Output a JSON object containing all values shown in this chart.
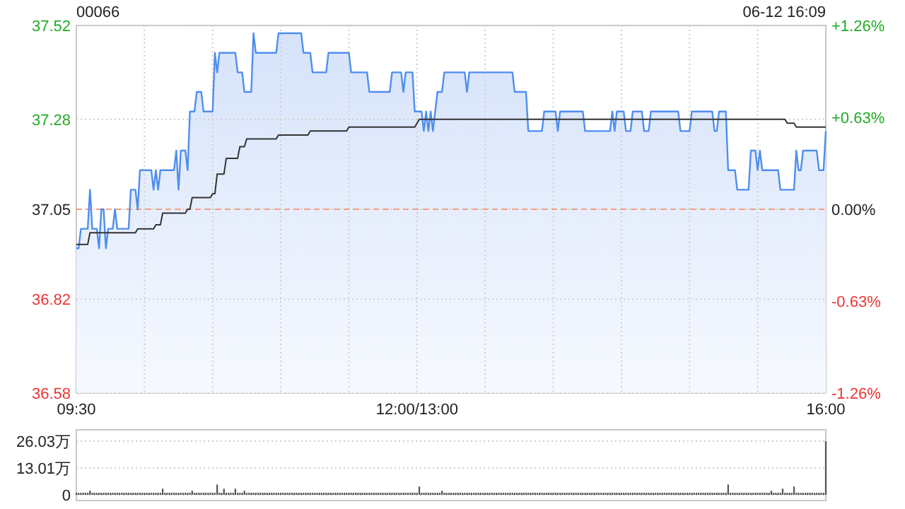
{
  "chart_data": [
    {
      "type": "area",
      "title": "00066",
      "subtitle": "06-12 16:09",
      "categories": [
        "09:30",
        null,
        null,
        null,
        null,
        null,
        null,
        null,
        null,
        null,
        null,
        null,
        null,
        null,
        null,
        null,
        null,
        null,
        null,
        null,
        null,
        null,
        null,
        null,
        null,
        null,
        null,
        null,
        null,
        null,
        null,
        null,
        null,
        null,
        null,
        null,
        null,
        null,
        null,
        null,
        null,
        null,
        null,
        null,
        null,
        null,
        null,
        null,
        null,
        null,
        null,
        null,
        null,
        null,
        null,
        null,
        null,
        null,
        null,
        null,
        null,
        null,
        null,
        null,
        null,
        null,
        null,
        null,
        null,
        null,
        null,
        null,
        null,
        null,
        null,
        null,
        null,
        null,
        null,
        null,
        null,
        null,
        null,
        null,
        null,
        null,
        null,
        null,
        null,
        null,
        null,
        null,
        null,
        null,
        null,
        null,
        null,
        null,
        null,
        null,
        null,
        null,
        null,
        null,
        null,
        null,
        null,
        null,
        null,
        null,
        null,
        null,
        null,
        null,
        null,
        null,
        null,
        null,
        null,
        null,
        null,
        null,
        null,
        null,
        null,
        null,
        null,
        null,
        null,
        null,
        null,
        null,
        null,
        null,
        null,
        null,
        null,
        null,
        null,
        null,
        null,
        null,
        null,
        null,
        null,
        null,
        null,
        null,
        null,
        null,
        "12:00/13:00",
        null,
        null,
        null,
        null,
        null,
        null,
        null,
        null,
        null,
        null,
        null,
        null,
        null,
        null,
        null,
        null,
        null,
        null,
        null,
        null,
        null,
        null,
        null,
        null,
        null,
        null,
        null,
        null,
        null,
        null,
        null,
        null,
        null,
        null,
        null,
        null,
        null,
        null,
        null,
        null,
        null,
        null,
        null,
        null,
        null,
        null,
        null,
        null,
        null,
        null,
        null,
        null,
        null,
        null,
        null,
        null,
        null,
        null,
        null,
        null,
        null,
        null,
        null,
        null,
        null,
        null,
        null,
        null,
        null,
        null,
        null,
        null,
        null,
        null,
        null,
        null,
        null,
        null,
        null,
        null,
        null,
        null,
        null,
        null,
        null,
        null,
        null,
        null,
        null,
        null,
        null,
        null,
        null,
        null,
        null,
        null,
        null,
        null,
        null,
        null,
        null,
        null,
        null,
        null,
        null,
        null,
        null,
        null,
        null,
        null,
        null,
        null,
        null,
        null,
        null,
        null,
        null,
        null,
        null,
        null,
        null,
        null,
        null,
        null,
        null,
        null,
        null,
        null,
        null,
        null,
        null,
        null,
        null,
        null,
        null,
        null,
        null,
        null,
        null,
        null,
        null,
        null,
        null,
        null,
        null,
        null,
        null,
        null,
        null,
        null,
        null,
        null,
        null,
        null,
        null,
        null,
        null,
        null,
        null,
        null,
        null,
        null,
        null,
        null,
        null,
        null,
        null,
        null,
        null,
        null,
        null,
        null,
        null,
        null,
        null,
        null,
        null,
        null,
        null,
        "16:00"
      ],
      "ylim": [
        36.58,
        37.52
      ],
      "yticks": [
        36.58,
        36.82,
        37.05,
        37.28,
        37.52
      ],
      "y2lim": [
        -1.26,
        1.26
      ],
      "y2ticks": [
        {
          "value": -1.26,
          "label": "-1.26%"
        },
        {
          "value": -0.63,
          "label": "-0.63%"
        },
        {
          "value": 0,
          "label": "0.00%"
        },
        {
          "value": 0.63,
          "label": "+0.63%"
        },
        {
          "value": 1.26,
          "label": "+1.26%"
        }
      ],
      "grid": true,
      "ref_lines": [
        {
          "axis": "y",
          "value": 37.05,
          "color": "#f0a080",
          "line_style": "dashed"
        }
      ],
      "series": [
        {
          "type": "area",
          "color": "#4f8ef0",
          "values": [
            36.95,
            36.95,
            37.0,
            37.0,
            37.0,
            37.0,
            37.1,
            37.0,
            37.0,
            37.0,
            36.95,
            37.05,
            37.05,
            36.95,
            37.0,
            37.0,
            37.0,
            37.05,
            37.0,
            37.0,
            37.0,
            37.0,
            37.0,
            37.0,
            37.1,
            37.1,
            37.1,
            37.05,
            37.15,
            37.15,
            37.15,
            37.15,
            37.15,
            37.15,
            37.1,
            37.15,
            37.1,
            37.15,
            37.15,
            37.15,
            37.15,
            37.15,
            37.15,
            37.15,
            37.2,
            37.1,
            37.2,
            37.2,
            37.2,
            37.15,
            37.3,
            37.3,
            37.3,
            37.35,
            37.35,
            37.35,
            37.3,
            37.3,
            37.3,
            37.3,
            37.3,
            37.45,
            37.4,
            37.45,
            37.45,
            37.45,
            37.45,
            37.45,
            37.45,
            37.45,
            37.45,
            37.4,
            37.4,
            37.4,
            37.35,
            37.35,
            37.35,
            37.35,
            37.5,
            37.45,
            37.45,
            37.45,
            37.45,
            37.45,
            37.45,
            37.45,
            37.45,
            37.45,
            37.45,
            37.5,
            37.5,
            37.5,
            37.5,
            37.5,
            37.5,
            37.5,
            37.5,
            37.5,
            37.5,
            37.5,
            37.45,
            37.45,
            37.45,
            37.45,
            37.4,
            37.4,
            37.4,
            37.4,
            37.4,
            37.4,
            37.4,
            37.45,
            37.45,
            37.45,
            37.45,
            37.45,
            37.45,
            37.45,
            37.45,
            37.45,
            37.45,
            37.4,
            37.4,
            37.4,
            37.4,
            37.4,
            37.4,
            37.4,
            37.4,
            37.35,
            37.35,
            37.35,
            37.35,
            37.35,
            37.35,
            37.35,
            37.35,
            37.35,
            37.35,
            37.4,
            37.4,
            37.4,
            37.4,
            37.4,
            37.35,
            37.4,
            37.4,
            37.4,
            37.4,
            37.3,
            37.3,
            37.3,
            37.3,
            37.25,
            37.3,
            37.25,
            37.3,
            37.25,
            37.3,
            37.35,
            37.35,
            37.35,
            37.4,
            37.4,
            37.4,
            37.4,
            37.4,
            37.4,
            37.4,
            37.4,
            37.4,
            37.4,
            37.35,
            37.4,
            37.4,
            37.4,
            37.4,
            37.4,
            37.4,
            37.4,
            37.4,
            37.4,
            37.4,
            37.4,
            37.4,
            37.4,
            37.4,
            37.4,
            37.4,
            37.4,
            37.4,
            37.4,
            37.4,
            37.35,
            37.35,
            37.35,
            37.35,
            37.35,
            37.35,
            37.25,
            37.25,
            37.25,
            37.25,
            37.25,
            37.25,
            37.25,
            37.3,
            37.3,
            37.3,
            37.3,
            37.3,
            37.3,
            37.25,
            37.3,
            37.3,
            37.3,
            37.3,
            37.3,
            37.3,
            37.3,
            37.3,
            37.3,
            37.3,
            37.3,
            37.25,
            37.25,
            37.25,
            37.25,
            37.25,
            37.25,
            37.25,
            37.25,
            37.25,
            37.25,
            37.25,
            37.25,
            37.3,
            37.25,
            37.3,
            37.3,
            37.3,
            37.3,
            37.25,
            37.25,
            37.25,
            37.3,
            37.3,
            37.3,
            37.3,
            37.3,
            37.25,
            37.25,
            37.25,
            37.3,
            37.3,
            37.3,
            37.3,
            37.3,
            37.3,
            37.3,
            37.3,
            37.3,
            37.3,
            37.3,
            37.3,
            37.3,
            37.25,
            37.25,
            37.25,
            37.25,
            37.25,
            37.3,
            37.3,
            37.3,
            37.3,
            37.3,
            37.3,
            37.3,
            37.3,
            37.3,
            37.3,
            37.25,
            37.25,
            37.3,
            37.3,
            37.3,
            37.3,
            37.15,
            37.15,
            37.15,
            37.15,
            37.1,
            37.1,
            37.1,
            37.1,
            37.1,
            37.1,
            37.2,
            37.2,
            37.2,
            37.15,
            37.2,
            37.15,
            37.15,
            37.15,
            37.15,
            37.15,
            37.15,
            37.15,
            37.15,
            37.1,
            37.1,
            37.1,
            37.1,
            37.1,
            37.1,
            37.1,
            37.2,
            37.15,
            37.15,
            37.2,
            37.2,
            37.2,
            37.2,
            37.2,
            37.2,
            37.2,
            37.15,
            37.15,
            37.15,
            37.25
          ]
        },
        {
          "type": "line",
          "color": "#333333",
          "values": [
            36.96,
            36.96,
            36.96,
            36.96,
            36.96,
            36.96,
            36.99,
            36.99,
            36.99,
            36.99,
            36.99,
            36.99,
            36.99,
            36.99,
            36.99,
            36.99,
            36.99,
            36.99,
            36.99,
            36.99,
            36.99,
            36.99,
            36.99,
            36.99,
            36.99,
            36.99,
            36.99,
            37.0,
            37.0,
            37.0,
            37.0,
            37.0,
            37.0,
            37.0,
            37.0,
            37.01,
            37.01,
            37.01,
            37.04,
            37.04,
            37.04,
            37.04,
            37.04,
            37.04,
            37.04,
            37.04,
            37.04,
            37.04,
            37.04,
            37.05,
            37.05,
            37.08,
            37.08,
            37.08,
            37.08,
            37.08,
            37.08,
            37.08,
            37.08,
            37.08,
            37.09,
            37.09,
            37.14,
            37.14,
            37.14,
            37.14,
            37.18,
            37.18,
            37.18,
            37.18,
            37.18,
            37.18,
            37.21,
            37.21,
            37.21,
            37.23,
            37.23,
            37.23,
            37.23,
            37.23,
            37.23,
            37.23,
            37.23,
            37.23,
            37.23,
            37.23,
            37.23,
            37.23,
            37.23,
            37.24,
            37.24,
            37.24,
            37.24,
            37.24,
            37.24,
            37.24,
            37.24,
            37.24,
            37.24,
            37.24,
            37.24,
            37.24,
            37.24,
            37.25,
            37.25,
            37.25,
            37.25,
            37.25,
            37.25,
            37.25,
            37.25,
            37.25,
            37.25,
            37.25,
            37.25,
            37.25,
            37.25,
            37.25,
            37.25,
            37.25,
            37.26,
            37.26,
            37.26,
            37.26,
            37.26,
            37.26,
            37.26,
            37.26,
            37.26,
            37.26,
            37.26,
            37.26,
            37.26,
            37.26,
            37.26,
            37.26,
            37.26,
            37.26,
            37.26,
            37.26,
            37.26,
            37.26,
            37.26,
            37.26,
            37.26,
            37.26,
            37.26,
            37.26,
            37.26,
            37.26,
            37.27,
            37.28,
            37.28,
            37.28,
            37.28,
            37.28,
            37.28,
            37.28,
            37.28,
            37.28,
            37.28,
            37.28,
            37.28,
            37.28,
            37.28,
            37.28,
            37.28,
            37.28,
            37.28,
            37.28,
            37.28,
            37.28,
            37.28,
            37.28,
            37.28,
            37.28,
            37.28,
            37.28,
            37.28,
            37.28,
            37.28,
            37.28,
            37.28,
            37.28,
            37.28,
            37.28,
            37.28,
            37.28,
            37.28,
            37.28,
            37.28,
            37.28,
            37.28,
            37.28,
            37.28,
            37.28,
            37.28,
            37.28,
            37.28,
            37.28,
            37.28,
            37.28,
            37.28,
            37.28,
            37.28,
            37.28,
            37.28,
            37.28,
            37.28,
            37.28,
            37.28,
            37.28,
            37.28,
            37.28,
            37.28,
            37.28,
            37.28,
            37.28,
            37.28,
            37.28,
            37.28,
            37.28,
            37.28,
            37.28,
            37.28,
            37.28,
            37.28,
            37.28,
            37.28,
            37.28,
            37.28,
            37.28,
            37.28,
            37.28,
            37.28,
            37.28,
            37.28,
            37.28,
            37.28,
            37.28,
            37.28,
            37.28,
            37.28,
            37.28,
            37.28,
            37.28,
            37.28,
            37.28,
            37.28,
            37.28,
            37.28,
            37.28,
            37.28,
            37.28,
            37.28,
            37.28,
            37.28,
            37.28,
            37.28,
            37.28,
            37.28,
            37.28,
            37.28,
            37.28,
            37.28,
            37.28,
            37.28,
            37.28,
            37.28,
            37.28,
            37.28,
            37.28,
            37.28,
            37.28,
            37.28,
            37.28,
            37.28,
            37.28,
            37.28,
            37.28,
            37.28,
            37.28,
            37.28,
            37.28,
            37.28,
            37.28,
            37.28,
            37.28,
            37.28,
            37.28,
            37.28,
            37.28,
            37.28,
            37.28,
            37.28,
            37.28,
            37.28,
            37.28,
            37.28,
            37.28,
            37.28,
            37.28,
            37.28,
            37.28,
            37.28,
            37.28,
            37.28,
            37.28,
            37.28,
            37.28,
            37.28,
            37.28,
            37.28,
            37.27,
            37.27,
            37.27,
            37.27,
            37.26,
            37.26,
            37.26,
            37.26,
            37.26,
            37.26,
            37.26,
            37.26,
            37.26,
            37.26,
            37.26,
            37.26,
            37.26,
            37.26
          ]
        }
      ]
    },
    {
      "type": "bar",
      "color": "#555555",
      "ylim": [
        0,
        26.03
      ],
      "yticks": [
        0,
        {
          "value": 13.01,
          "label": "13.01万"
        },
        {
          "value": 26.03,
          "label": "26.03万"
        }
      ],
      "grid": "y",
      "categories": [
        null,
        null,
        null,
        null,
        null,
        null,
        null,
        null,
        null,
        null,
        null,
        null,
        null,
        null,
        null,
        null,
        null,
        null,
        null,
        null,
        null,
        null,
        null,
        null,
        null,
        null,
        null,
        null,
        null,
        null,
        null,
        null,
        null,
        null,
        null,
        null,
        null,
        null,
        null,
        null,
        null,
        null,
        null,
        null,
        null,
        null,
        null,
        null,
        null,
        null,
        null,
        null,
        null,
        null,
        null,
        null,
        null,
        null,
        null,
        null,
        null,
        null,
        null,
        null,
        null,
        null,
        null,
        null,
        null,
        null,
        null,
        null,
        null,
        null,
        null,
        null,
        null,
        null,
        null,
        null,
        null,
        null,
        null,
        null,
        null,
        null,
        null,
        null,
        null,
        null,
        null,
        null,
        null,
        null,
        null,
        null,
        null,
        null,
        null,
        null,
        null,
        null,
        null,
        null,
        null,
        null,
        null,
        null,
        null,
        null,
        null,
        null,
        null,
        null,
        null,
        null,
        null,
        null,
        null,
        null,
        null,
        null,
        null,
        null,
        null,
        null,
        null,
        null,
        null,
        null,
        null,
        null,
        null,
        null,
        null,
        null,
        null,
        null,
        null,
        null,
        null,
        null,
        null,
        null,
        null,
        null,
        null,
        null,
        null,
        null,
        null,
        null,
        null,
        null,
        null,
        null,
        null,
        null,
        null,
        null,
        null,
        null,
        null,
        null,
        null,
        null,
        null,
        null,
        null,
        null,
        null,
        null,
        null,
        null,
        null,
        null,
        null,
        null,
        null,
        null,
        null,
        null,
        null,
        null,
        null,
        null,
        null,
        null,
        null,
        null,
        null,
        null,
        null,
        null,
        null,
        null,
        null,
        null,
        null,
        null,
        null,
        null,
        null,
        null,
        null,
        null,
        null,
        null,
        null,
        null,
        null,
        null,
        null,
        null,
        null,
        null,
        null,
        null,
        null,
        null,
        null,
        null,
        null,
        null,
        null,
        null,
        null,
        null,
        null,
        null,
        null,
        null,
        null,
        null,
        null,
        null,
        null,
        null,
        null,
        null,
        null,
        null,
        null,
        null,
        null,
        null,
        null,
        null,
        null,
        null,
        null,
        null,
        null,
        null,
        null,
        null,
        null,
        null,
        null,
        null,
        null,
        null,
        null,
        null,
        null,
        null,
        null,
        null,
        null,
        null,
        null,
        null,
        null,
        null,
        null,
        null,
        null,
        null,
        null,
        null,
        null,
        null,
        null,
        null,
        null,
        null,
        null,
        null,
        null,
        null,
        null,
        null,
        null,
        null,
        null,
        null,
        null,
        null,
        null,
        null,
        null,
        null,
        null,
        null,
        null,
        null,
        null,
        null,
        null,
        null,
        null,
        null,
        null,
        null,
        null,
        null,
        null,
        null,
        null,
        null,
        null,
        null,
        null,
        null,
        null,
        null,
        null,
        null,
        null,
        null,
        null
      ],
      "values": [
        1,
        1,
        1,
        1,
        1,
        1,
        2,
        1,
        1,
        1,
        1,
        1,
        1,
        1,
        1,
        1,
        1,
        1,
        1,
        1,
        1,
        1,
        1,
        1,
        1,
        1,
        1,
        1,
        1,
        1,
        1,
        1,
        1,
        1,
        1,
        1,
        1,
        1,
        3,
        1,
        1,
        1,
        1,
        1,
        1,
        1,
        1,
        1,
        1,
        1,
        1,
        2,
        1,
        1,
        1,
        1,
        1,
        1,
        1,
        1,
        1,
        1,
        5,
        1,
        1,
        3,
        1,
        1,
        1,
        1,
        3,
        1,
        1,
        1,
        2,
        1,
        1,
        1,
        1,
        1,
        1,
        1,
        1,
        1,
        1,
        1,
        1,
        1,
        1,
        1,
        1,
        1,
        1,
        1,
        1,
        1,
        1,
        1,
        1,
        1,
        1,
        1,
        1,
        1,
        1,
        1,
        1,
        1,
        1,
        1,
        1,
        1,
        1,
        1,
        1,
        1,
        1,
        1,
        1,
        1,
        1,
        1,
        1,
        1,
        1,
        1,
        1,
        1,
        1,
        1,
        1,
        1,
        1,
        1,
        1,
        1,
        1,
        1,
        1,
        1,
        1,
        1,
        1,
        1,
        1,
        1,
        1,
        1,
        1,
        1,
        1,
        4,
        1,
        1,
        1,
        1,
        1,
        1,
        1,
        1,
        1,
        2,
        1,
        1,
        1,
        1,
        1,
        1,
        1,
        1,
        1,
        1,
        1,
        1,
        1,
        1,
        1,
        1,
        1,
        1,
        1,
        1,
        1,
        1,
        1,
        1,
        1,
        1,
        1,
        1,
        1,
        1,
        1,
        1,
        1,
        1,
        1,
        1,
        1,
        1,
        1,
        1,
        1,
        1,
        1,
        1,
        1,
        1,
        1,
        1,
        1,
        1,
        1,
        1,
        1,
        1,
        1,
        1,
        1,
        1,
        1,
        1,
        1,
        1,
        1,
        1,
        1,
        1,
        1,
        1,
        1,
        1,
        1,
        1,
        1,
        1,
        1,
        1,
        1,
        1,
        1,
        1,
        1,
        1,
        1,
        1,
        1,
        1,
        1,
        1,
        1,
        1,
        1,
        1,
        1,
        1,
        1,
        1,
        1,
        1,
        1,
        1,
        1,
        1,
        1,
        1,
        1,
        1,
        1,
        1,
        1,
        1,
        1,
        1,
        1,
        1,
        1,
        1,
        1,
        1,
        1,
        1,
        1,
        1,
        1,
        1,
        1,
        5,
        1,
        1,
        1,
        1,
        1,
        1,
        1,
        1,
        1,
        1,
        1,
        1,
        1,
        1,
        1,
        1,
        1,
        1,
        2,
        1,
        1,
        1,
        1,
        3,
        1,
        1,
        1,
        1,
        4,
        1,
        1,
        1,
        1,
        1,
        1,
        1,
        1,
        1,
        1,
        1,
        1,
        1,
        26
      ]
    }
  ]
}
